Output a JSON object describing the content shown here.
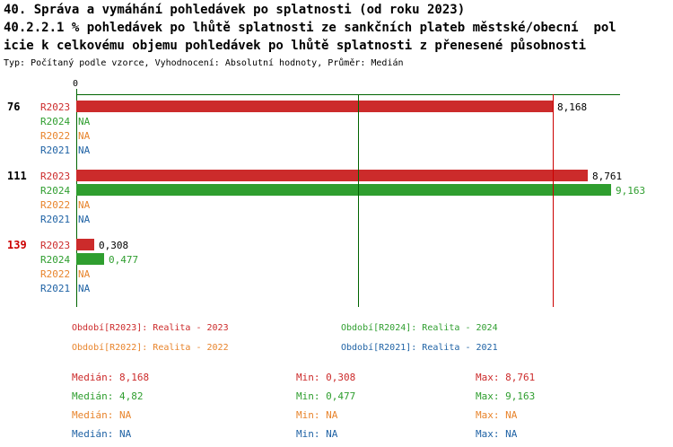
{
  "colors": {
    "R2023": "#cc2b2b",
    "R2024": "#2f9e2f",
    "R2022": "#e8842c",
    "R2021": "#2063a5",
    "axis": "#006400",
    "value_black": "#000000",
    "group_id_red": "#cc0000"
  },
  "chart_data": {
    "type": "bar",
    "orientation": "horizontal",
    "title_lines": [
      "40. Správa a vymáhání pohledávek po splatnosti (od roku 2023)",
      "40.2.2.1 % pohledávek po lhůtě splatnosti ze sankčních plateb městské/obecní  pol",
      "icie k celkovému objemu pohledávek po lhůtě splatnosti z přenesené působnosti"
    ],
    "subtitle": "Typ: Počítaný podle vzorce, Vyhodnocení: Absolutní hodnoty, Průměr: Medián",
    "xlim": [
      0,
      9.3
    ],
    "x_axis_origin_label": "0",
    "grid": false,
    "series_labels": [
      "R2023",
      "R2024",
      "R2022",
      "R2021"
    ],
    "groups": [
      {
        "id": "76",
        "id_color": "#000000",
        "rows": [
          {
            "series": "R2023",
            "value": 8.168,
            "display": "8,168",
            "value_color": "#000000"
          },
          {
            "series": "R2024",
            "value": null,
            "display": "NA",
            "value_color": "#2f9e2f"
          },
          {
            "series": "R2022",
            "value": null,
            "display": "NA",
            "value_color": "#e8842c"
          },
          {
            "series": "R2021",
            "value": null,
            "display": "NA",
            "value_color": "#2063a5"
          }
        ]
      },
      {
        "id": "111",
        "id_color": "#000000",
        "rows": [
          {
            "series": "R2023",
            "value": 8.761,
            "display": "8,761",
            "value_color": "#000000"
          },
          {
            "series": "R2024",
            "value": 9.163,
            "display": "9,163",
            "value_color": "#2f9e2f"
          },
          {
            "series": "R2022",
            "value": null,
            "display": "NA",
            "value_color": "#e8842c"
          },
          {
            "series": "R2021",
            "value": null,
            "display": "NA",
            "value_color": "#2063a5"
          }
        ]
      },
      {
        "id": "139",
        "id_color": "#cc0000",
        "rows": [
          {
            "series": "R2023",
            "value": 0.308,
            "display": "0,308",
            "value_color": "#000000"
          },
          {
            "series": "R2024",
            "value": 0.477,
            "display": "0,477",
            "value_color": "#2f9e2f"
          },
          {
            "series": "R2022",
            "value": null,
            "display": "NA",
            "value_color": "#e8842c"
          },
          {
            "series": "R2021",
            "value": null,
            "display": "NA",
            "value_color": "#2063a5"
          }
        ]
      }
    ],
    "median_lines": [
      {
        "series": "R2023",
        "value": 8.168,
        "color": "#cc0000"
      },
      {
        "series": "R2024",
        "value": 4.82,
        "color": "#006400"
      }
    ],
    "legend": {
      "position": "bottom",
      "items": [
        {
          "label": "Období[R2023]: Realita - 2023",
          "color": "#cc2b2b"
        },
        {
          "label": "Období[R2024]: Realita - 2024",
          "color": "#2f9e2f"
        },
        {
          "label": "Období[R2022]: Realita - 2022",
          "color": "#e8842c"
        },
        {
          "label": "Období[R2021]: Realita - 2021",
          "color": "#2063a5"
        }
      ]
    },
    "stats_rows": [
      {
        "median": "Medián: 8,168",
        "min": "Min: 0,308",
        "max": "Max: 8,761",
        "color": "#cc2b2b"
      },
      {
        "median": "Medián: 4,82",
        "min": "Min: 0,477",
        "max": "Max: 9,163",
        "color": "#2f9e2f"
      },
      {
        "median": "Medián: NA",
        "min": "Min: NA",
        "max": "Max: NA",
        "color": "#e8842c"
      },
      {
        "median": "Medián: NA",
        "min": "Min: NA",
        "max": "Max: NA",
        "color": "#2063a5"
      }
    ]
  }
}
